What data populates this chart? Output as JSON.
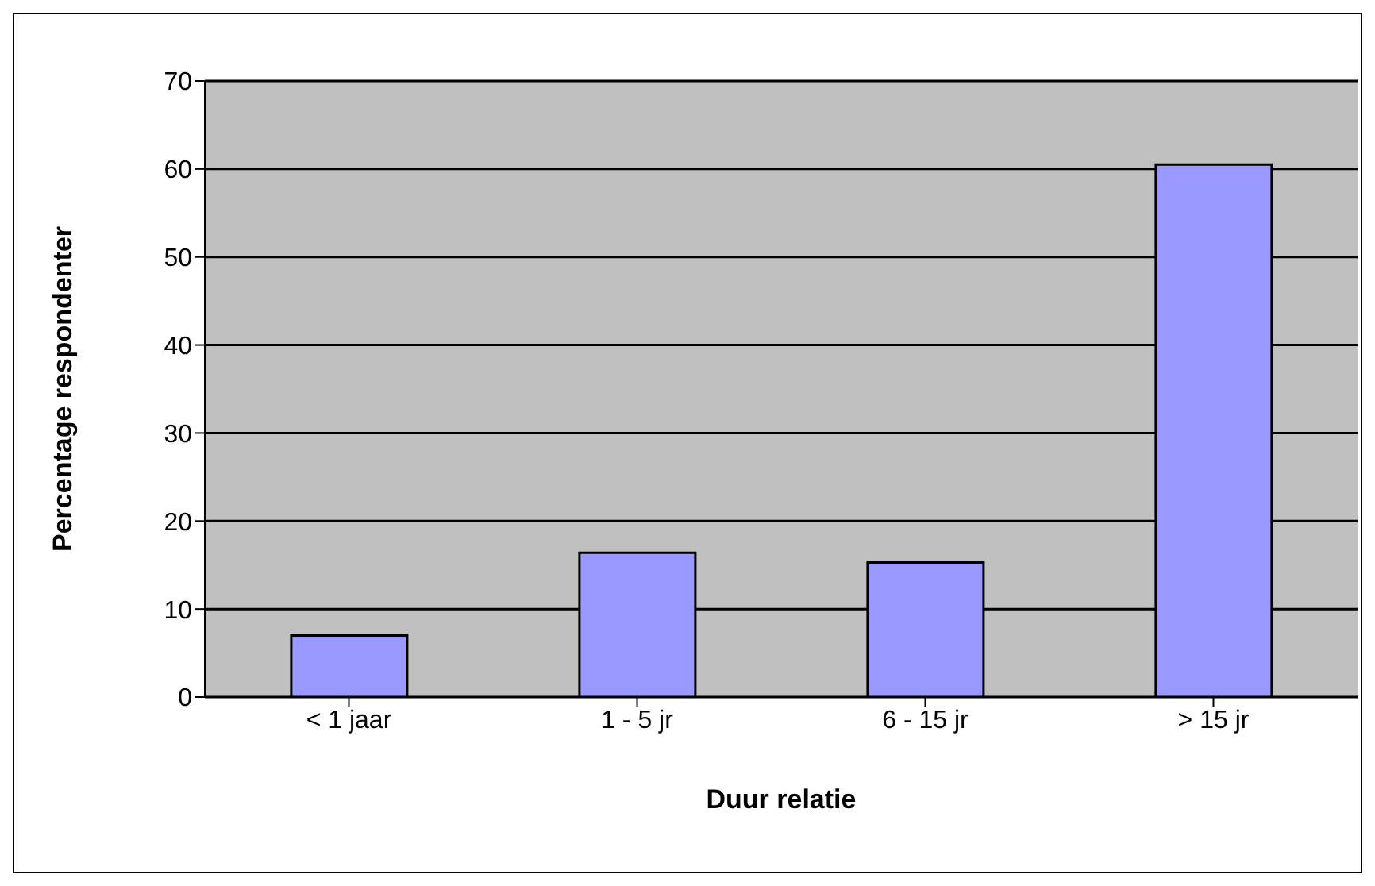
{
  "chart_data": {
    "type": "bar",
    "xlabel": "Duur relatie",
    "ylabel": "Percentage respondenter",
    "categories": [
      "< 1 jaar",
      "1 - 5 jr",
      "6 - 15 jr",
      "> 15 jr"
    ],
    "values": [
      7.0,
      16.4,
      15.3,
      60.5
    ],
    "color": "#9999ff",
    "ylim": [
      0,
      70
    ],
    "yticks": [
      0,
      10,
      20,
      30,
      40,
      50,
      60,
      70
    ],
    "grid": "y"
  }
}
